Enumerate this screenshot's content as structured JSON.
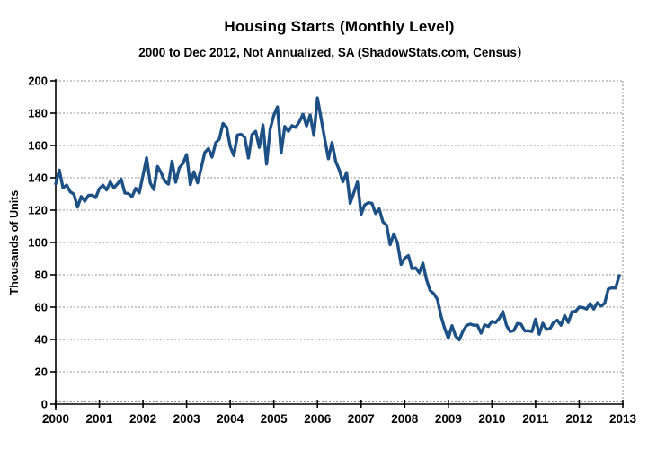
{
  "chart_data": {
    "type": "line",
    "title": "Housing Starts (Monthly Level)",
    "subtitle_main": "2000 to Dec 2012, Not Annualized, SA (ShadowStats.com, Census",
    "subtitle_close": ")",
    "ylabel": "Thousands of Units",
    "xlabel": "",
    "ylim": [
      0,
      200
    ],
    "y_ticks": [
      0,
      20,
      40,
      60,
      80,
      100,
      120,
      140,
      160,
      180,
      200
    ],
    "x_ticks": [
      "2000",
      "2001",
      "2002",
      "2003",
      "2004",
      "2005",
      "2006",
      "2007",
      "2008",
      "2009",
      "2010",
      "2011",
      "2012",
      "2013"
    ],
    "grid": "horizontal-dashed",
    "legend": "none",
    "line_color": "#1d5186",
    "grid_color": "#8f8f8f",
    "axis_color": "#000000",
    "background_color": "#ffffff",
    "series": [
      {
        "name": "Housing Starts, monthly level, seasonally adjusted (thousands of units)",
        "frequency": "monthly",
        "start_month": "2000-01",
        "end_month": "2012-12",
        "values": [
          136.3,
          144.8,
          133.7,
          135.5,
          131.3,
          129.9,
          121.9,
          128.4,
          125.6,
          129.1,
          129.3,
          127.7,
          133.3,
          135.4,
          132.5,
          137.4,
          133.8,
          136.3,
          139.2,
          130.6,
          130.2,
          128.3,
          133.5,
          130.7,
          141.5,
          152.4,
          136.8,
          132.7,
          147.0,
          143.1,
          137.9,
          136.1,
          150.3,
          137.3,
          146.1,
          149.0,
          154.4,
          135.8,
          143.8,
          136.9,
          145.9,
          155.6,
          158.1,
          152.8,
          161.6,
          163.9,
          173.6,
          171.4,
          159.3,
          153.8,
          166.5,
          166.9,
          165.1,
          152.3,
          166.8,
          168.7,
          158.8,
          172.7,
          148.5,
          170.2,
          178.7,
          183.9,
          155.3,
          171.8,
          168.8,
          172.3,
          171.2,
          174.6,
          179.3,
          172.1,
          178.9,
          166.2,
          189.4,
          176.6,
          164.1,
          151.8,
          161.8,
          150.2,
          144.8,
          137.5,
          143.3,
          124.3,
          130.8,
          137.4,
          117.4,
          123.3,
          124.6,
          124.2,
          117.9,
          120.7,
          112.8,
          110.8,
          98.6,
          105.3,
          99.8,
          86.4,
          90.3,
          91.9,
          83.8,
          84.4,
          81.3,
          87.2,
          76.9,
          70.3,
          68.3,
          64.8,
          54.3,
          46.7,
          40.8,
          48.5,
          42.1,
          39.8,
          45.0,
          48.6,
          49.5,
          48.8,
          48.8,
          43.9,
          49.0,
          48.0,
          51.2,
          50.4,
          53.0,
          57.3,
          48.6,
          44.9,
          45.5,
          49.9,
          49.5,
          45.3,
          45.4,
          44.9,
          52.5,
          43.2,
          50.0,
          46.2,
          46.8,
          50.7,
          51.9,
          48.8,
          54.8,
          50.5,
          57.1,
          57.4,
          60.0,
          59.8,
          58.8,
          62.3,
          58.8,
          62.8,
          60.7,
          62.4,
          71.2,
          71.9,
          71.8,
          79.5
        ]
      }
    ]
  }
}
